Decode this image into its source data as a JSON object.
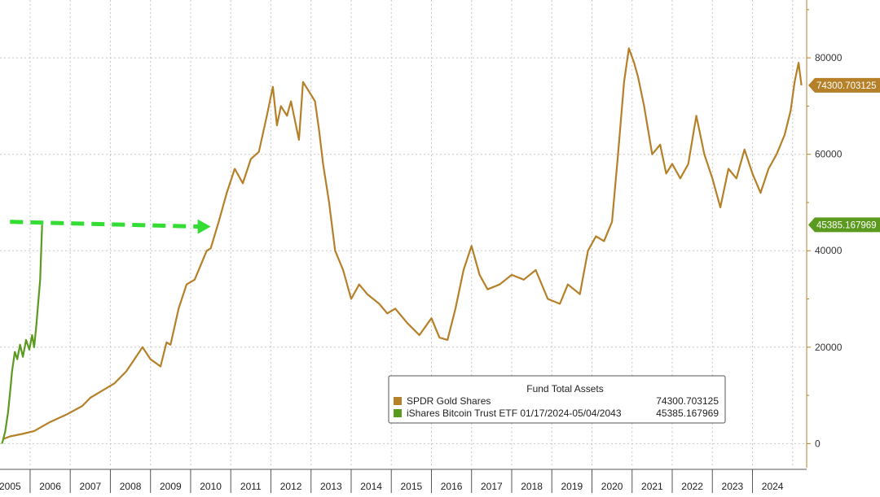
{
  "chart_data": {
    "type": "line",
    "title": "",
    "xlabel": "",
    "ylabel": "",
    "x_tick_labels": [
      "2005",
      "2006",
      "2007",
      "2008",
      "2009",
      "2010",
      "2011",
      "2012",
      "2013",
      "2014",
      "2015",
      "2016",
      "2017",
      "2018",
      "2019",
      "2020",
      "2021",
      "2022",
      "2023",
      "2024"
    ],
    "x_range": [
      2004.75,
      2024.85
    ],
    "ylim": [
      -5000,
      92000
    ],
    "y_ticks": [
      0,
      20000,
      40000,
      60000,
      80000
    ],
    "y_tick_labels": [
      "0",
      "20000",
      "40000",
      "60000",
      "80000"
    ],
    "grid": true,
    "legend": {
      "title": "Fund Total Assets",
      "placement": "bottom-right",
      "entries": [
        {
          "label": "SPDR Gold Shares",
          "value_label": "74300.703125",
          "color": "#b58028"
        },
        {
          "label": "iShares Bitcoin Trust ETF 01/17/2024-05/04/2043",
          "value_label": "45385.167969",
          "color": "#5a9a1f"
        }
      ]
    },
    "last_value_tags": [
      {
        "series": "SPDR Gold Shares",
        "text": "74300.703125",
        "value": 74300.703125,
        "color": "#b58028"
      },
      {
        "series": "iShares Bitcoin Trust ETF 01/17/2024-05/04/2043",
        "text": "45385.167969",
        "value": 45385.167969,
        "color": "#5a9a1f"
      }
    ],
    "annotation": {
      "type": "dashed-arrow",
      "color": "#33dd33",
      "from": [
        2005.0,
        46000
      ],
      "to": [
        2010.0,
        45000
      ]
    },
    "series": [
      {
        "name": "SPDR Gold Shares",
        "color": "#b58028",
        "x": [
          2004.85,
          2005.0,
          2005.3,
          2005.6,
          2006.0,
          2006.4,
          2006.8,
          2007.0,
          2007.3,
          2007.6,
          2007.9,
          2008.1,
          2008.3,
          2008.5,
          2008.75,
          2008.9,
          2009.0,
          2009.2,
          2009.4,
          2009.6,
          2009.9,
          2010.0,
          2010.2,
          2010.4,
          2010.6,
          2010.8,
          2011.0,
          2011.2,
          2011.4,
          2011.55,
          2011.65,
          2011.75,
          2011.9,
          2012.0,
          2012.1,
          2012.2,
          2012.3,
          2012.45,
          2012.6,
          2012.7,
          2012.8,
          2012.95,
          2013.1,
          2013.3,
          2013.5,
          2013.7,
          2013.9,
          2014.2,
          2014.4,
          2014.6,
          2014.9,
          2015.2,
          2015.5,
          2015.7,
          2015.9,
          2016.1,
          2016.3,
          2016.5,
          2016.7,
          2016.9,
          2017.2,
          2017.5,
          2017.8,
          2018.1,
          2018.4,
          2018.7,
          2018.9,
          2019.2,
          2019.4,
          2019.6,
          2019.8,
          2020.0,
          2020.15,
          2020.3,
          2020.42,
          2020.55,
          2020.65,
          2020.8,
          2021.0,
          2021.2,
          2021.35,
          2021.5,
          2021.7,
          2021.9,
          2022.1,
          2022.3,
          2022.5,
          2022.7,
          2022.9,
          2023.1,
          2023.3,
          2023.5,
          2023.7,
          2023.9,
          2024.1,
          2024.3,
          2024.45,
          2024.55,
          2024.65,
          2024.72
        ],
        "y": [
          1000,
          1500,
          2000,
          2600,
          4500,
          6000,
          7800,
          9500,
          11000,
          12500,
          15000,
          17500,
          20000,
          17500,
          16000,
          21000,
          20500,
          28000,
          33000,
          34000,
          40000,
          40500,
          46000,
          52000,
          57000,
          54000,
          59000,
          60500,
          68000,
          74000,
          66000,
          70000,
          68000,
          71000,
          67000,
          63000,
          75000,
          73000,
          71000,
          65000,
          58000,
          50000,
          40000,
          36000,
          30000,
          33000,
          31000,
          29000,
          27000,
          28000,
          25000,
          22500,
          26000,
          22000,
          21500,
          28000,
          36000,
          41000,
          35000,
          32000,
          33000,
          35000,
          34000,
          36000,
          30000,
          29000,
          33000,
          31000,
          40000,
          43000,
          42000,
          46000,
          60000,
          75000,
          82000,
          79000,
          76000,
          70000,
          60000,
          62000,
          56000,
          58000,
          55000,
          58000,
          68000,
          60000,
          55000,
          49000,
          57000,
          55000,
          61000,
          56000,
          52000,
          57000,
          60000,
          64000,
          69000,
          75000,
          79000,
          74300.703125
        ]
      },
      {
        "name": "iShares Bitcoin Trust ETF 01/17/2024-05/04/2043",
        "color": "#5a9a1f",
        "x": [
          2004.8,
          2004.88,
          2004.95,
          2005.0,
          2005.05,
          2005.12,
          2005.18,
          2005.25,
          2005.32,
          2005.4,
          2005.48,
          2005.55,
          2005.6,
          2005.65,
          2005.7,
          2005.75,
          2005.8
        ],
        "y": [
          0,
          2500,
          6500,
          10500,
          15000,
          19000,
          17500,
          20500,
          18000,
          21500,
          19500,
          22500,
          20000,
          24000,
          29000,
          34000,
          45385.167969
        ]
      }
    ]
  }
}
